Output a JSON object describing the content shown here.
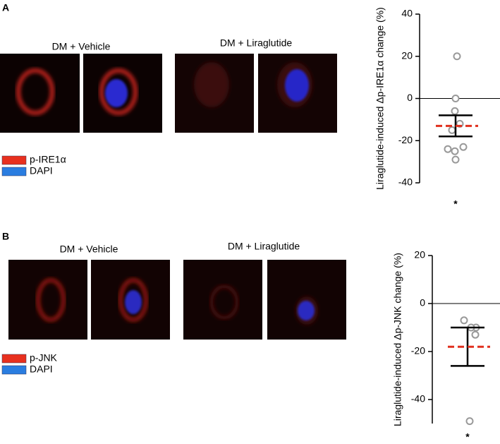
{
  "panels": [
    {
      "label": "A",
      "captions": [
        "DM + Vehicle",
        "DM + Liraglutide"
      ],
      "legend": [
        "p-IRE1α",
        "DAPI"
      ]
    },
    {
      "label": "B",
      "captions": [
        "DM + Vehicle",
        "DM + Liraglutide"
      ],
      "legend": [
        "p-JNK",
        "DAPI"
      ]
    }
  ],
  "chart_data": [
    {
      "type": "dot-plot",
      "ylabel": "Liraglutide-induced Δp-IRE1α change (%)",
      "values": [
        20,
        0,
        -6,
        -12,
        -15,
        -23,
        -24,
        -25,
        -29
      ],
      "mean": -13,
      "sem": 5,
      "color": "#999999",
      "mean_color": "#e0301e",
      "ylim": [
        -40,
        40
      ],
      "yticks": [
        -40,
        -20,
        0,
        20,
        40
      ],
      "hline": 0,
      "annotation": "*"
    },
    {
      "type": "dot-plot",
      "ylabel": "Liraglutide-induced Δp-JNK change (%)",
      "values": [
        -7,
        -10,
        -10,
        -13,
        -49
      ],
      "mean": -18,
      "sem": 8,
      "color": "#999999",
      "mean_color": "#e0301e",
      "ylim": [
        -50,
        20
      ],
      "yticks": [
        -40,
        -20,
        0,
        20
      ],
      "hline": 0,
      "annotation": "*"
    }
  ]
}
